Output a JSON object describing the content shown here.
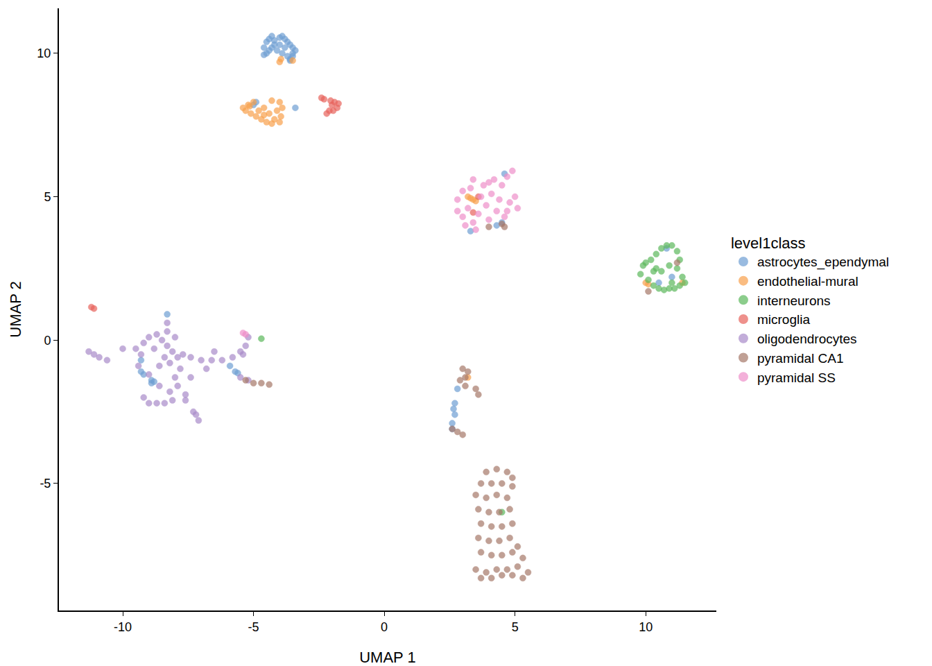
{
  "chart_data": {
    "type": "scatter",
    "x_label": "UMAP 1",
    "y_label": "UMAP 2",
    "legend_title": "level1class",
    "legend": "right",
    "grid": false,
    "marker": "circle",
    "xlim": [
      -12.44,
      12.7
    ],
    "ylim": [
      -9.43,
      11.57
    ],
    "xticks": [
      -10,
      -5,
      0,
      5,
      10
    ],
    "yticks": [
      -5,
      0,
      5,
      10
    ],
    "series": [
      {
        "name": "astrocytes_ependymal",
        "color": "#6f9fd3",
        "x": [
          -4.6,
          -4.5,
          -4.4,
          -4.3,
          -4.2,
          -4.0,
          -3.9,
          -3.8,
          -3.7,
          -3.6,
          -3.5,
          -3.4,
          -3.5,
          -3.6,
          -3.7,
          -3.9,
          -4.1,
          -4.3,
          -4.5,
          -4.6,
          -4.0,
          -3.8,
          -3.6,
          -3.5,
          -4.2,
          -4.4,
          -3.4,
          -4.9,
          -5.0,
          4.6,
          4.5,
          4.3,
          3.3,
          -9.3,
          -9.2,
          -8.9,
          -8.9,
          -8.8,
          -9.3,
          -8.3,
          -5.9,
          -5.7,
          -5.6,
          2.7,
          2.65,
          2.7,
          2.6,
          2.6,
          2.8,
          10.5,
          11.0,
          10.8
        ],
        "values": [
          10.2,
          10.4,
          10.5,
          10.6,
          10.45,
          10.55,
          10.6,
          10.5,
          10.4,
          10.3,
          10.2,
          10.1,
          9.9,
          9.8,
          9.9,
          10.0,
          10.1,
          10.2,
          10.0,
          9.95,
          10.3,
          10.2,
          9.75,
          10.0,
          10.3,
          10.1,
          8.1,
          8.3,
          8.2,
          5.8,
          4.1,
          4.0,
          3.8,
          -1.1,
          -1.2,
          -1.4,
          -1.5,
          -1.45,
          -0.7,
          0.9,
          -0.9,
          -1.1,
          -1.15,
          -2.2,
          -2.4,
          -2.6,
          -2.9,
          -3.1,
          -1.7,
          2.0,
          2.2,
          3.2
        ]
      },
      {
        "name": "endothelial-mural",
        "color": "#f8a14c",
        "x": [
          -5.4,
          -5.3,
          -5.2,
          -5.1,
          -5.0,
          -4.9,
          -4.8,
          -4.7,
          -4.6,
          -4.5,
          -4.4,
          -4.3,
          -4.2,
          -4.1,
          -4.0,
          -3.9,
          -3.95,
          -4.3,
          -4.6,
          -5.15,
          -4.0,
          -4.0,
          -3.95,
          -3.5,
          3.2,
          3.3,
          3.4,
          3.5,
          10.0,
          10.1,
          11.4,
          3.2
        ],
        "values": [
          8.1,
          8.0,
          8.2,
          7.9,
          8.3,
          7.8,
          8.0,
          7.7,
          8.1,
          7.6,
          7.9,
          7.55,
          7.7,
          8.0,
          8.3,
          8.1,
          7.8,
          8.35,
          7.85,
          8.15,
          7.6,
          9.7,
          9.8,
          9.75,
          5.0,
          4.95,
          4.9,
          4.85,
          2.0,
          1.95,
          2.0,
          -1.3
        ]
      },
      {
        "name": "interneurons",
        "color": "#5cb85c",
        "x": [
          9.8,
          9.9,
          10.0,
          10.2,
          10.4,
          10.6,
          10.8,
          11.0,
          11.2,
          11.3,
          11.2,
          11.4,
          11.5,
          11.3,
          11.1,
          10.9,
          10.7,
          10.5,
          10.3,
          10.1,
          10.6,
          10.9,
          10.4,
          10.3,
          11.0,
          -4.7,
          4.5
        ],
        "values": [
          2.3,
          2.6,
          2.7,
          2.8,
          3.0,
          3.2,
          3.3,
          3.3,
          3.1,
          2.8,
          2.5,
          2.2,
          2.0,
          1.9,
          1.8,
          1.8,
          1.75,
          1.8,
          1.9,
          2.1,
          2.4,
          2.6,
          2.5,
          2.4,
          2.0,
          0.05,
          -6.0
        ]
      },
      {
        "name": "microglia",
        "color": "#e8635c",
        "x": [
          -2.3,
          -2.1,
          -2.0,
          -1.9,
          -1.8,
          -2.2,
          -1.95,
          -1.75,
          -2.05,
          -2.4,
          -11.2,
          -11.1,
          3.4,
          3.6
        ],
        "values": [
          8.4,
          8.0,
          8.2,
          8.3,
          8.1,
          7.9,
          8.0,
          8.25,
          8.35,
          8.45,
          1.15,
          1.1,
          4.45,
          5.0
        ]
      },
      {
        "name": "oligodendrocytes",
        "color": "#a98bc9",
        "x": [
          -11.3,
          -11.1,
          -10.9,
          -10.6,
          -10.0,
          -9.5,
          -9.2,
          -9.0,
          -8.7,
          -8.5,
          -8.3,
          -8.1,
          -7.9,
          -7.7,
          -8.0,
          -8.4,
          -8.6,
          -8.2,
          -7.8,
          -8.0,
          -7.9,
          -8.2,
          -7.6,
          -9.3,
          -8.8,
          -8.3,
          -8.3,
          -7.4,
          -7.0,
          -6.6,
          -6.2,
          -5.8,
          -5.4,
          -5.3,
          -5.2,
          -5.5,
          -9.2,
          -9.0,
          -8.7,
          -8.4,
          -8.1,
          -7.6,
          -7.3,
          -7.1,
          -7.2,
          -5.5,
          -5.2,
          -6.8,
          -7.4,
          -9.0,
          -8.6,
          -6.5,
          -9.4
        ],
        "values": [
          -0.4,
          -0.5,
          -0.6,
          -0.7,
          -0.3,
          -0.3,
          -0.1,
          0.1,
          0.2,
          0.0,
          -0.2,
          -0.4,
          -0.6,
          -0.5,
          0.1,
          -0.6,
          -0.9,
          -0.8,
          -1.0,
          -1.3,
          -1.6,
          -1.8,
          -1.9,
          -0.5,
          -0.3,
          0.3,
          0.6,
          -0.6,
          -0.7,
          -0.7,
          -0.7,
          -0.6,
          -0.5,
          -0.2,
          0.1,
          -0.4,
          -2.0,
          -2.2,
          -2.2,
          -2.2,
          -2.1,
          -2.1,
          -2.5,
          -2.8,
          -2.6,
          -1.3,
          -1.4,
          -1.0,
          -1.3,
          -1.2,
          -1.6,
          -0.4,
          -0.9
        ]
      },
      {
        "name": "pyramidal CA1",
        "color": "#a67869",
        "x": [
          3.9,
          4.3,
          4.7,
          4.9,
          3.7,
          4.1,
          4.5,
          4.9,
          3.5,
          3.9,
          4.3,
          4.7,
          3.6,
          4.0,
          4.4,
          4.8,
          3.7,
          4.1,
          4.5,
          4.9,
          3.6,
          4.0,
          4.4,
          4.8,
          5.1,
          3.7,
          4.1,
          4.5,
          4.9,
          5.3,
          3.5,
          3.9,
          4.3,
          4.7,
          5.1,
          5.5,
          3.7,
          4.1,
          4.5,
          4.9,
          5.3,
          3.0,
          3.2,
          3.1,
          2.9,
          3.1,
          3.5,
          3.6,
          2.6,
          2.8,
          3.0,
          4.0,
          4.6,
          4.5,
          -5.3,
          -5.0,
          -4.7,
          -4.4,
          10.1,
          11.2
        ],
        "values": [
          -4.6,
          -4.5,
          -4.6,
          -4.8,
          -5.0,
          -5.0,
          -5.0,
          -5.1,
          -5.4,
          -5.5,
          -5.4,
          -5.5,
          -5.9,
          -6.0,
          -6.0,
          -5.9,
          -6.4,
          -6.5,
          -6.5,
          -6.4,
          -6.9,
          -7.0,
          -7.0,
          -6.9,
          -7.2,
          -7.4,
          -7.5,
          -7.5,
          -7.4,
          -7.6,
          -8.0,
          -8.1,
          -8.0,
          -8.0,
          -7.9,
          -8.1,
          -8.3,
          -8.3,
          -8.2,
          -8.2,
          -8.3,
          -1.0,
          -1.1,
          -1.3,
          -1.4,
          -1.6,
          -1.7,
          -1.9,
          -3.1,
          -3.2,
          -3.3,
          3.95,
          3.95,
          4.05,
          -1.4,
          -1.5,
          -1.5,
          -1.55,
          1.7,
          2.7
        ]
      },
      {
        "name": "pyramidal SS",
        "color": "#ee8fc9",
        "x": [
          2.8,
          2.8,
          3.0,
          3.0,
          3.2,
          3.3,
          3.4,
          3.6,
          3.7,
          3.8,
          3.9,
          4.0,
          4.1,
          4.2,
          4.3,
          4.4,
          4.5,
          4.6,
          4.7,
          4.8,
          4.9,
          5.0,
          5.1,
          3.1,
          3.5,
          4.7,
          4.0,
          3.4,
          -5.4,
          -5.3
        ],
        "values": [
          4.5,
          4.9,
          4.3,
          5.2,
          4.6,
          5.3,
          4.1,
          4.4,
          5.0,
          5.4,
          4.7,
          4.2,
          5.1,
          5.6,
          4.5,
          4.9,
          5.4,
          4.3,
          5.7,
          4.8,
          5.9,
          5.0,
          4.6,
          4.0,
          3.85,
          4.5,
          5.5,
          5.6,
          0.25,
          0.2
        ]
      }
    ]
  }
}
